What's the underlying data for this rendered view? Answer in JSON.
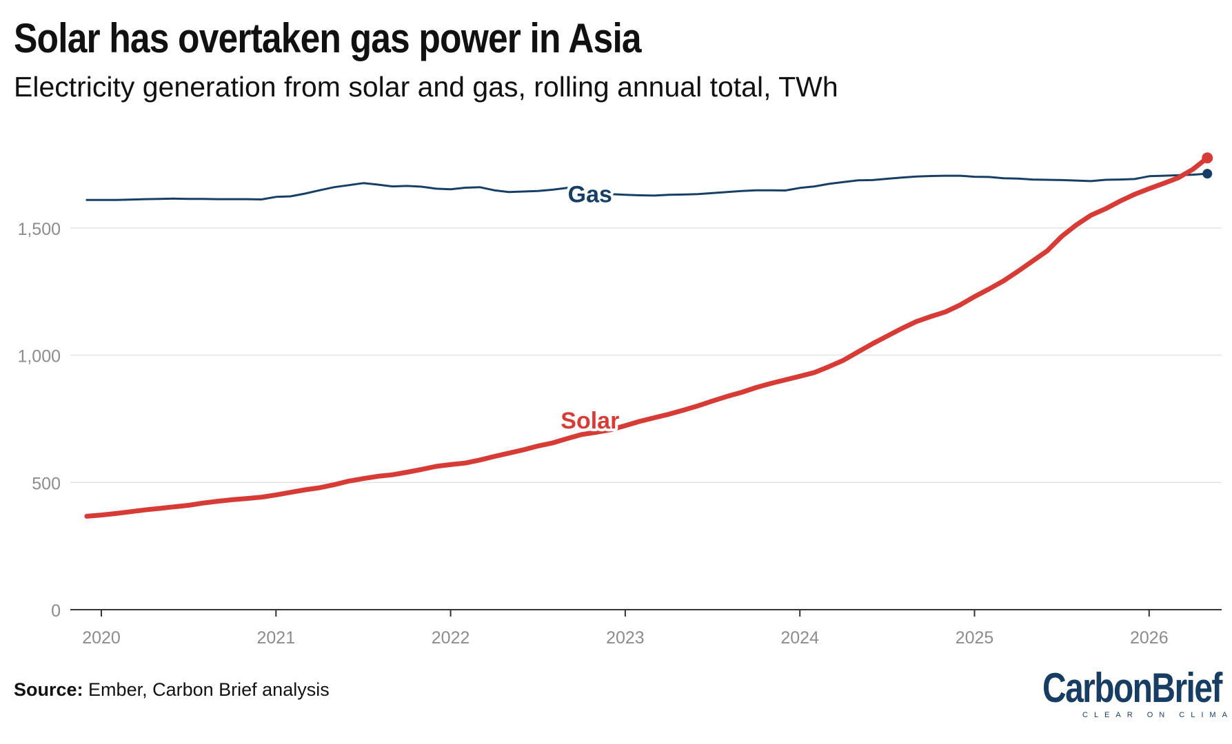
{
  "header": {
    "title": "Solar has overtaken gas power in Asia",
    "subtitle": "Electricity generation from solar and gas, rolling annual total, TWh"
  },
  "footer": {
    "source_label": "Source:",
    "source_text": "Ember, Carbon Brief analysis"
  },
  "logo": {
    "word_carbon": "Carbon",
    "word_brief": "Brief",
    "tagline": "CLEAR ON CLIMATE"
  },
  "chart_data": {
    "type": "line",
    "title": "Solar has overtaken gas power in Asia",
    "subtitle": "Electricity generation from solar and gas, rolling annual total, TWh",
    "xlabel": "",
    "ylabel": "",
    "ylim": [
      0,
      1800
    ],
    "yticks": [
      0,
      500,
      1000,
      1500
    ],
    "ytick_labels": [
      "0",
      "500",
      "1,000",
      "1,500"
    ],
    "xticks": [
      "2020",
      "2021",
      "2022",
      "2023",
      "2024",
      "2025",
      "2026"
    ],
    "grid": "horizontal",
    "legend": "inline-labels",
    "x": [
      "2019-12",
      "2020-01",
      "2020-02",
      "2020-03",
      "2020-04",
      "2020-05",
      "2020-06",
      "2020-07",
      "2020-08",
      "2020-09",
      "2020-10",
      "2020-11",
      "2020-12",
      "2021-01",
      "2021-02",
      "2021-03",
      "2021-04",
      "2021-05",
      "2021-06",
      "2021-07",
      "2021-08",
      "2021-09",
      "2021-10",
      "2021-11",
      "2021-12",
      "2022-01",
      "2022-02",
      "2022-03",
      "2022-04",
      "2022-05",
      "2022-06",
      "2022-07",
      "2022-08",
      "2022-09",
      "2022-10",
      "2022-11",
      "2022-12",
      "2023-01",
      "2023-02",
      "2023-03",
      "2023-04",
      "2023-05",
      "2023-06",
      "2023-07",
      "2023-08",
      "2023-09",
      "2023-10",
      "2023-11",
      "2023-12",
      "2024-01",
      "2024-02",
      "2024-03",
      "2024-04",
      "2024-05",
      "2024-06",
      "2024-07",
      "2024-08",
      "2024-09",
      "2024-10",
      "2024-11",
      "2024-12",
      "2025-01",
      "2025-02",
      "2025-03",
      "2025-04",
      "2025-05",
      "2025-06",
      "2025-07",
      "2025-08",
      "2025-09",
      "2025-10",
      "2025-11",
      "2025-12",
      "2026-01",
      "2026-02",
      "2026-03",
      "2026-04",
      "2026-05"
    ],
    "series": [
      {
        "name": "Gas",
        "color": "#173f66",
        "label_anchor_index": 36,
        "values": [
          1610,
          1610,
          1610,
          1611,
          1613,
          1614,
          1615,
          1614,
          1614,
          1613,
          1613,
          1613,
          1612,
          1622,
          1624,
          1635,
          1648,
          1660,
          1668,
          1676,
          1670,
          1663,
          1665,
          1662,
          1654,
          1652,
          1658,
          1660,
          1648,
          1641,
          1643,
          1645,
          1650,
          1657,
          1640,
          1636,
          1633,
          1630,
          1628,
          1627,
          1630,
          1631,
          1633,
          1637,
          1641,
          1645,
          1648,
          1648,
          1647,
          1657,
          1663,
          1673,
          1680,
          1687,
          1688,
          1693,
          1698,
          1702,
          1704,
          1705,
          1705,
          1701,
          1700,
          1695,
          1694,
          1690,
          1689,
          1688,
          1686,
          1684,
          1689,
          1690,
          1692,
          1703,
          1705,
          1707,
          1709,
          1713
        ]
      },
      {
        "name": "Solar",
        "color": "#d63c35",
        "label_anchor_index": 36,
        "values": [
          367,
          372,
          378,
          385,
          392,
          398,
          404,
          410,
          419,
          426,
          432,
          437,
          442,
          451,
          461,
          471,
          479,
          491,
          505,
          515,
          524,
          530,
          540,
          551,
          563,
          570,
          576,
          588,
          602,
          615,
          628,
          643,
          655,
          672,
          688,
          697,
          707,
          723,
          740,
          754,
          768,
          784,
          801,
          820,
          838,
          854,
          873,
          889,
          903,
          917,
          932,
          955,
          980,
          1013,
          1045,
          1075,
          1105,
          1132,
          1152,
          1170,
          1197,
          1230,
          1260,
          1292,
          1330,
          1370,
          1410,
          1467,
          1512,
          1550,
          1575,
          1605,
          1632,
          1654,
          1675,
          1697,
          1730,
          1775
        ]
      }
    ]
  }
}
